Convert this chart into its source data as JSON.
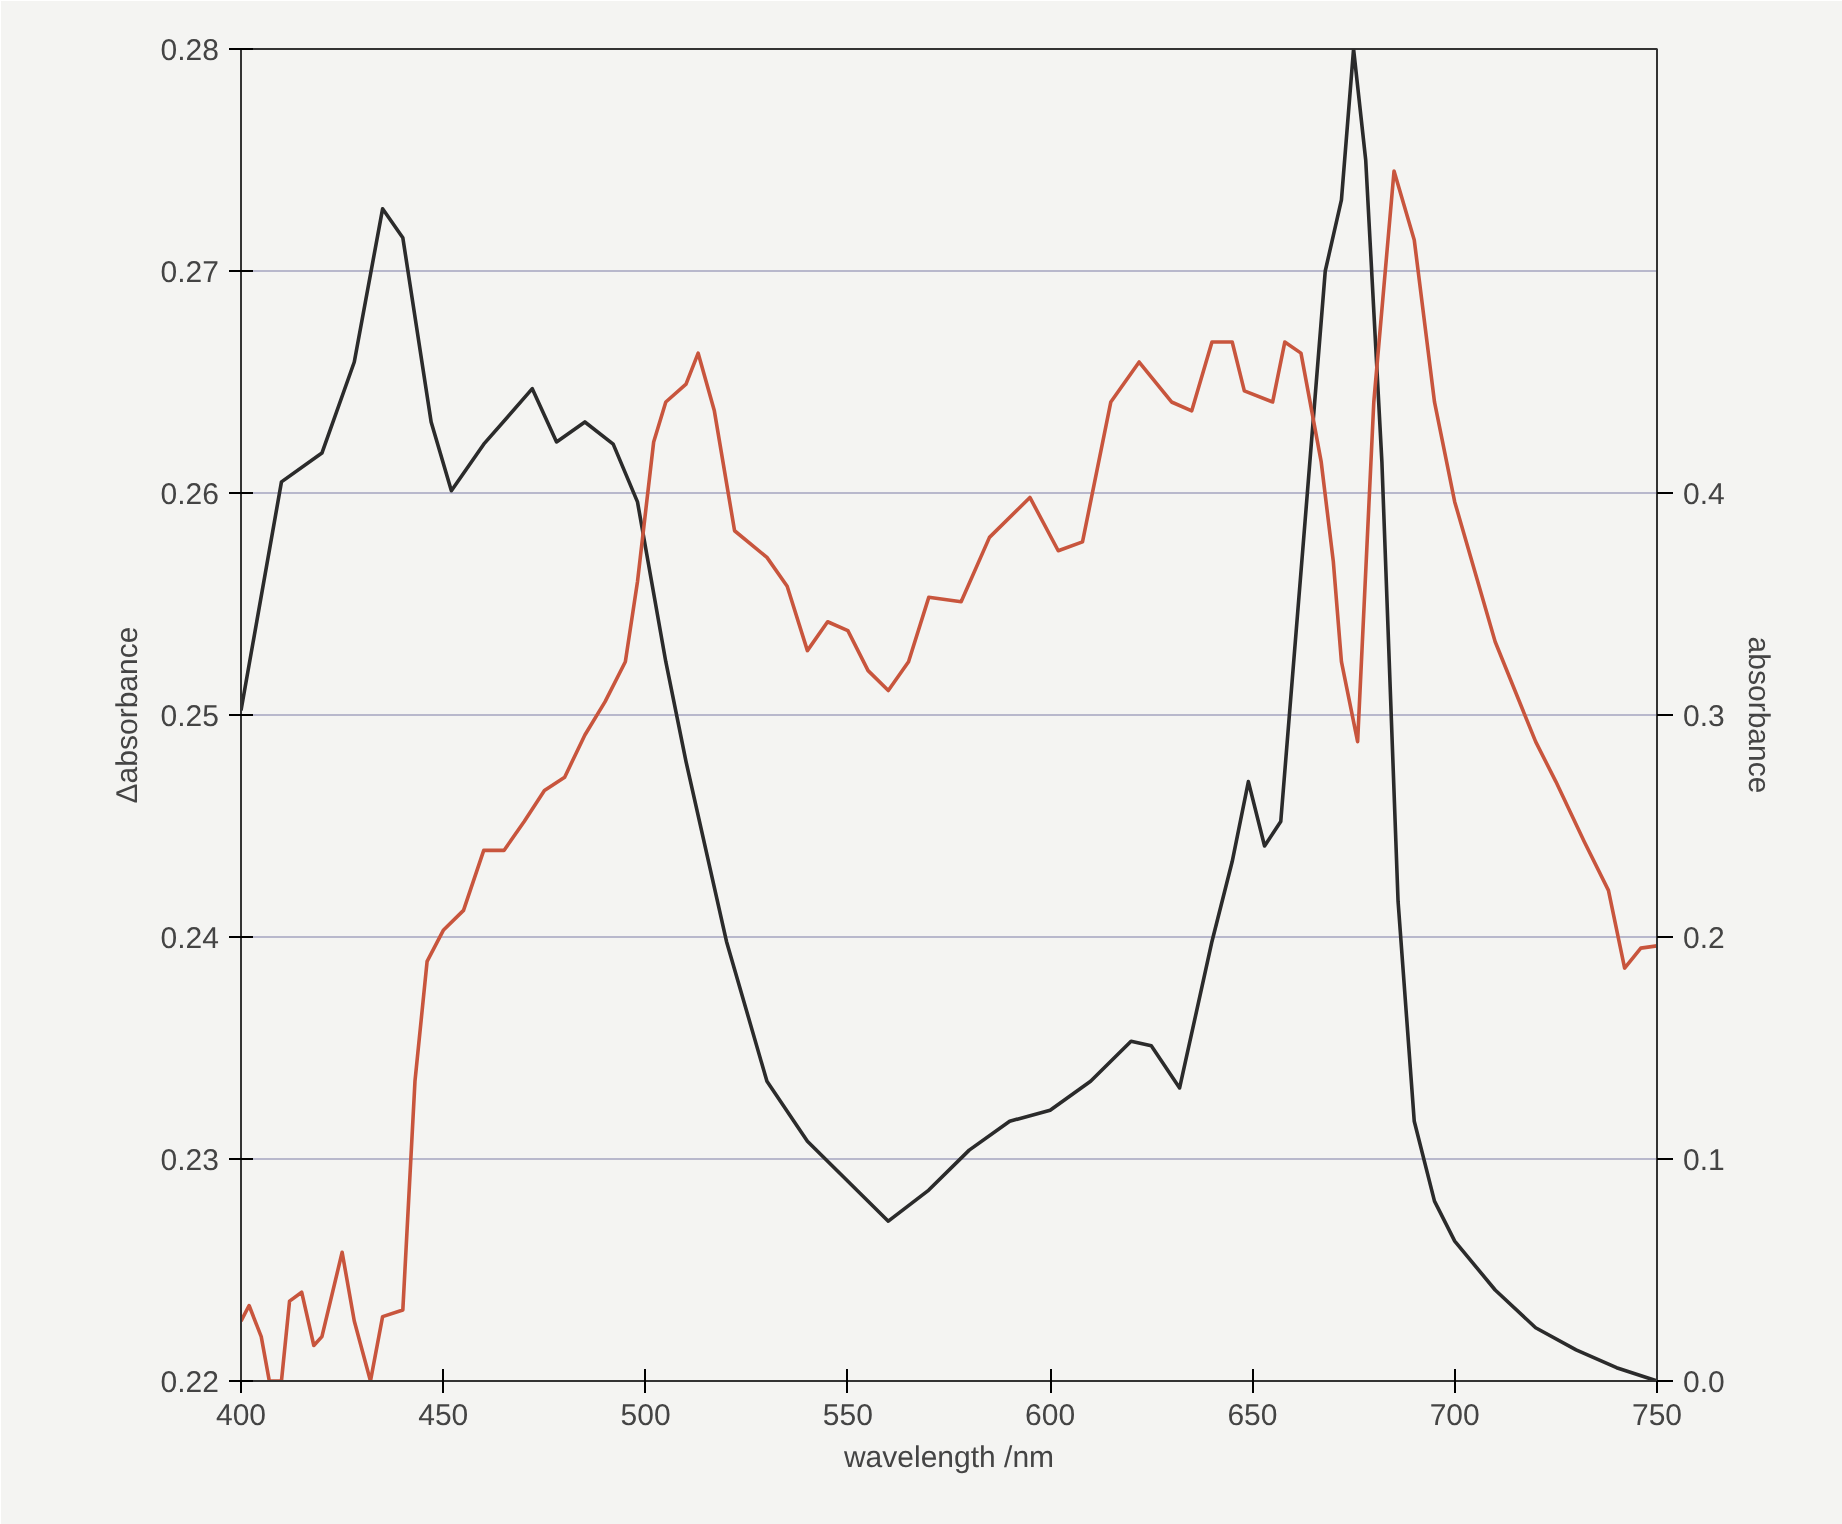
{
  "chart_data": {
    "type": "line",
    "xlabel": "wavelength /nm",
    "ylabel": "Δabsorbance",
    "y2label": "absorbance",
    "xlim": [
      400,
      750
    ],
    "xticks": [
      400,
      450,
      500,
      550,
      600,
      650,
      700,
      750
    ],
    "ylim": [
      0.22,
      0.28
    ],
    "yticks": [
      0.22,
      0.23,
      0.24,
      0.25,
      0.26,
      0.27,
      0.28
    ],
    "y2lim": [
      0,
      0.6
    ],
    "y2ticks": [
      {
        "value": 0,
        "label": "0.0"
      },
      0.1,
      0.2,
      0.3,
      0.4
    ],
    "grid": "y",
    "marker": "none",
    "line_style": "solid",
    "series": [
      {
        "color": "#2b2b2b",
        "axis": "y2",
        "x": [
          400,
          410,
          420,
          428,
          435,
          440,
          447,
          452,
          460,
          472,
          478,
          485,
          492,
          498,
          505,
          510,
          520,
          530,
          540,
          550,
          560,
          570,
          580,
          590,
          600,
          610,
          620,
          625,
          632,
          640,
          645,
          649,
          653,
          657,
          663,
          668,
          672,
          675,
          678,
          682,
          686,
          690,
          695,
          700,
          710,
          720,
          730,
          740,
          750
        ],
        "values": [
          0.302,
          0.405,
          0.418,
          0.459,
          0.528,
          0.515,
          0.432,
          0.401,
          0.422,
          0.447,
          0.423,
          0.432,
          0.422,
          0.396,
          0.324,
          0.279,
          0.198,
          0.135,
          0.108,
          0.09,
          0.072,
          0.086,
          0.104,
          0.117,
          0.122,
          0.135,
          0.153,
          0.151,
          0.132,
          0.198,
          0.234,
          0.27,
          0.241,
          0.252,
          0.387,
          0.5,
          0.532,
          0.6,
          0.55,
          0.414,
          0.216,
          0.117,
          0.081,
          0.063,
          0.041,
          0.024,
          0.014,
          0.006,
          0.0
        ]
      },
      {
        "color": "#c8553d",
        "x": [
          400,
          402,
          405,
          407,
          410,
          412,
          415,
          418,
          420,
          425,
          428,
          432,
          435,
          440,
          443,
          446,
          450,
          455,
          460,
          465,
          470,
          475,
          480,
          485,
          490,
          495,
          498,
          502,
          505,
          510,
          513,
          517,
          522,
          530,
          535,
          540,
          545,
          550,
          555,
          560,
          565,
          570,
          578,
          585,
          595,
          602,
          608,
          615,
          622,
          630,
          635,
          640,
          645,
          648,
          655,
          658,
          662,
          667,
          670,
          672,
          676,
          680,
          685,
          690,
          695,
          700,
          710,
          720,
          725,
          732,
          738,
          742,
          746,
          750
        ],
        "values": [
          0.2227,
          0.2234,
          0.222,
          0.22,
          0.22,
          0.2236,
          0.224,
          0.2216,
          0.222,
          0.2258,
          0.2227,
          0.22,
          0.2229,
          0.2232,
          0.2335,
          0.2389,
          0.2403,
          0.2412,
          0.2439,
          0.2439,
          0.2452,
          0.2466,
          0.2472,
          0.2491,
          0.2506,
          0.2524,
          0.256,
          0.2623,
          0.2641,
          0.2649,
          0.2663,
          0.2637,
          0.2583,
          0.2571,
          0.2558,
          0.2529,
          0.2542,
          0.2538,
          0.252,
          0.2511,
          0.2524,
          0.2553,
          0.2551,
          0.258,
          0.2598,
          0.2574,
          0.2578,
          0.2641,
          0.2659,
          0.2641,
          0.2637,
          0.2668,
          0.2668,
          0.2646,
          0.2641,
          0.2668,
          0.2663,
          0.2614,
          0.2569,
          0.2524,
          0.2488,
          0.2641,
          0.2745,
          0.2714,
          0.2641,
          0.2596,
          0.2533,
          0.2488,
          0.247,
          0.2443,
          0.2421,
          0.2386,
          0.2395,
          0.2396
        ]
      }
    ]
  }
}
